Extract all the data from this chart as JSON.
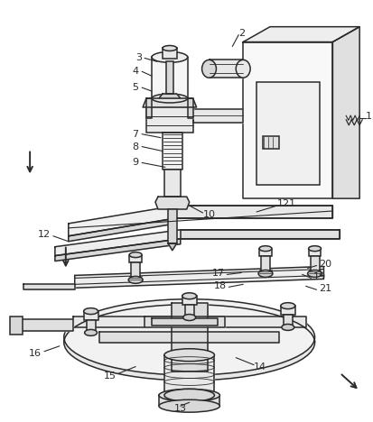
{
  "background_color": "#ffffff",
  "line_color": "#2a2a2a",
  "line_width": 1.1,
  "figsize": [
    4.14,
    4.68
  ],
  "dpi": 100
}
